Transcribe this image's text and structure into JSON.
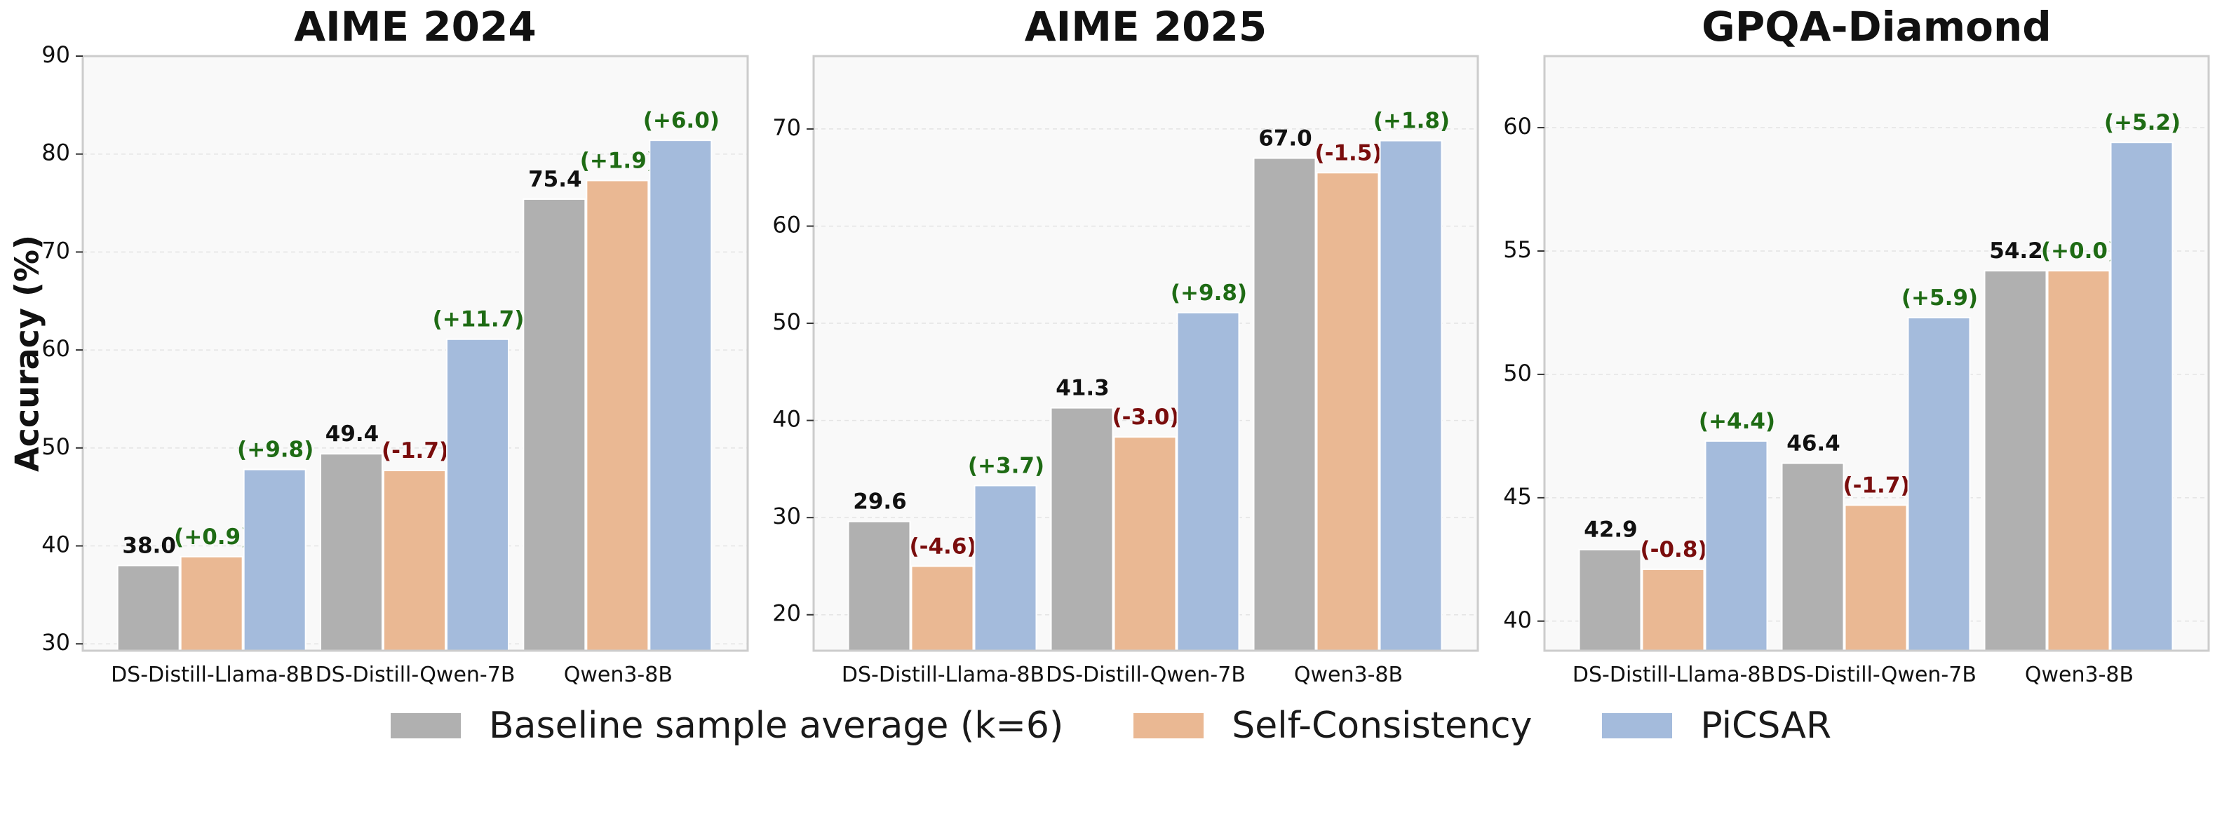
{
  "chart_data": {
    "type": "bar",
    "ylabel": "Accuracy (%)",
    "categories": [
      "DS-Distill-Llama-8B",
      "DS-Distill-Qwen-7B",
      "Qwen3-8B"
    ],
    "legend_placement": "bottom",
    "grid": true,
    "series_meta": [
      {
        "name": "Baseline sample average (k=6)",
        "color": "#b0b0b0"
      },
      {
        "name": "Self-Consistency",
        "color": "#eab893"
      },
      {
        "name": "PiCSAR",
        "color": "#a4bbdc"
      }
    ],
    "delta_colors": {
      "positive": "#1e6b14",
      "negative": "#7a0d0d"
    },
    "panels": [
      {
        "title": "AIME 2024",
        "ylim": [
          29.3,
          90
        ],
        "yticks": [
          30,
          40,
          50,
          60,
          70,
          80,
          90
        ],
        "series": [
          {
            "name": "Baseline sample average (k=6)",
            "values": [
              38.0,
              49.4,
              75.4
            ]
          },
          {
            "name": "Self-Consistency",
            "values": [
              38.9,
              47.7,
              77.3
            ]
          },
          {
            "name": "PiCSAR",
            "values": [
              47.8,
              61.1,
              81.4
            ]
          }
        ],
        "value_labels": [
          "38.0",
          "49.4",
          "75.4"
        ],
        "sc_deltas": [
          "(+0.9)",
          "(-1.7)",
          "(+1.9)"
        ],
        "picsar_deltas": [
          "(+9.8)",
          "(+11.7)",
          "(+6.0)"
        ]
      },
      {
        "title": "AIME 2025",
        "ylim": [
          16.3,
          77.5
        ],
        "yticks": [
          20,
          30,
          40,
          50,
          60,
          70
        ],
        "series": [
          {
            "name": "Baseline sample average (k=6)",
            "values": [
              29.6,
              41.3,
              67.0
            ]
          },
          {
            "name": "Self-Consistency",
            "values": [
              25.0,
              38.3,
              65.5
            ]
          },
          {
            "name": "PiCSAR",
            "values": [
              33.3,
              51.1,
              68.8
            ]
          }
        ],
        "value_labels": [
          "29.6",
          "41.3",
          "67.0"
        ],
        "sc_deltas": [
          "(-4.6)",
          "(-3.0)",
          "(-1.5)"
        ],
        "picsar_deltas": [
          "(+3.7)",
          "(+9.8)",
          "(+1.8)"
        ]
      },
      {
        "title": "GPQA-Diamond",
        "ylim": [
          38.8,
          62.9
        ],
        "yticks": [
          40,
          45,
          50,
          55,
          60
        ],
        "series": [
          {
            "name": "Baseline sample average (k=6)",
            "values": [
              42.9,
              46.4,
              54.2
            ]
          },
          {
            "name": "Self-Consistency",
            "values": [
              42.1,
              44.7,
              54.2
            ]
          },
          {
            "name": "PiCSAR",
            "values": [
              47.3,
              52.3,
              59.4
            ]
          }
        ],
        "value_labels": [
          "42.9",
          "46.4",
          "54.2"
        ],
        "sc_deltas": [
          "(-0.8)",
          "(-1.7)",
          "(+0.0)"
        ],
        "picsar_deltas": [
          "(+4.4)",
          "(+5.9)",
          "(+5.2)"
        ]
      }
    ]
  }
}
